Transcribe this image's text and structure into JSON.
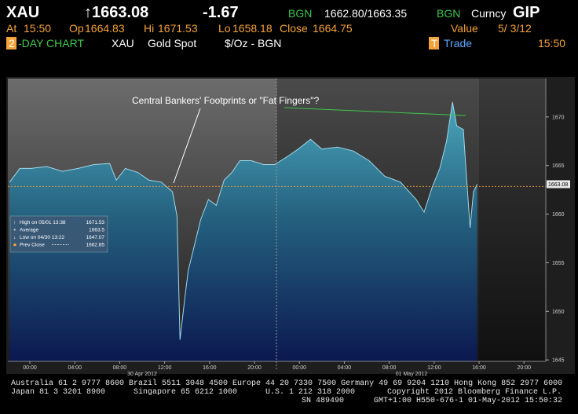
{
  "header": {
    "row1": {
      "ticker": "XAU",
      "last": "↑1663.08",
      "change": "-1.67",
      "source1": "BGN",
      "bid_ask": "1662.80/1663.35",
      "source2": "BGN",
      "market": "Curncy",
      "market_key": "GIP"
    },
    "row2": {
      "at_label": "At",
      "at": "15:50",
      "open_label": "Op",
      "open": "1664.83",
      "high_label": "Hi",
      "high": "1671.53",
      "low_label": "Lo",
      "low": "1658.18",
      "close_label": "Close",
      "close": "1664.75",
      "value_label": "Value",
      "value_date": "5/ 3/12"
    },
    "row3": {
      "page_number": "2",
      "page_title": "-DAY CHART",
      "ticker": "XAU",
      "name": "Gold Spot",
      "unit": "$/Oz - BGN",
      "trade_key": "T",
      "trade": "Trade",
      "time": "15:50"
    }
  },
  "chart_data": {
    "type": "area",
    "annotation": "Central Bankers' Footprints or \"Fat Fingers\"?",
    "date_labels": [
      "30 Apr 2012",
      "01 May 2012"
    ],
    "x": [
      -1.8,
      -0.9,
      0.1,
      1.5,
      2.9,
      4.3,
      5.7,
      7.1,
      7.7,
      8.5,
      9.6,
      10.6,
      11.7,
      12.7,
      13.1,
      13.37,
      13.8,
      14.1,
      14.7,
      15.2,
      15.9,
      16.6,
      17.3,
      18.0,
      18.7,
      19.7,
      20.8,
      21.8,
      22.9,
      23.9,
      25.0,
      26.0,
      27.4,
      28.8,
      30.2,
      31.6,
      33.0,
      34.4,
      35.1,
      35.8,
      36.5,
      37.1,
      37.63,
      38.0,
      38.6,
      38.9,
      39.2,
      39.5,
      39.83
    ],
    "series": [
      {
        "name": "XAU",
        "color": "#9fd8ea",
        "values": [
          1663.3,
          1664.7,
          1664.7,
          1664.9,
          1664.4,
          1664.7,
          1665.1,
          1665.2,
          1663.5,
          1664.7,
          1664.3,
          1663.5,
          1663.3,
          1662.3,
          1659.8,
          1647.07,
          1651.4,
          1654.2,
          1657.0,
          1659.4,
          1661.5,
          1660.9,
          1663.5,
          1664.3,
          1665.5,
          1665.5,
          1665.1,
          1665.1,
          1665.9,
          1666.7,
          1667.7,
          1666.7,
          1666.9,
          1666.5,
          1665.5,
          1663.9,
          1663.3,
          1661.5,
          1660.2,
          1662.7,
          1664.7,
          1667.5,
          1671.53,
          1669.1,
          1668.7,
          1663.5,
          1658.6,
          1662.3,
          1663.08
        ]
      }
    ],
    "last_price": 1663.08,
    "prev_close": 1662.85,
    "legend": [
      {
        "label": "High on 05/01 13:38",
        "value": 1671.53
      },
      {
        "label": "Average",
        "value": 1663.5
      },
      {
        "label": "Low on 04/30 13:22",
        "value": 1647.07
      },
      {
        "label": "Prev Close",
        "value": 1662.85
      }
    ],
    "xlim": [
      -1.96,
      45.94
    ],
    "xticks": [
      {
        "value": 0,
        "label": "00:00"
      },
      {
        "value": 4,
        "label": "04:00"
      },
      {
        "value": 8,
        "label": "08:00"
      },
      {
        "value": 12,
        "label": "12:00"
      },
      {
        "value": 16,
        "label": "16:00"
      },
      {
        "value": 20,
        "label": "20:00"
      },
      {
        "value": 24,
        "label": "00:00"
      },
      {
        "value": 28,
        "label": "04:00"
      },
      {
        "value": 32,
        "label": "08:00"
      },
      {
        "value": 36,
        "label": "12:00"
      },
      {
        "value": 40,
        "label": "16:00"
      },
      {
        "value": 44,
        "label": "20:00"
      }
    ],
    "ylim": [
      1644.85,
      1673.95
    ],
    "yticks": [
      1645,
      1650,
      1655,
      1660,
      1665,
      1670
    ],
    "grid": false
  },
  "footer": {
    "line1": "Australia 61 2 9777 8600 Brazil 5511 3048 4500 Europe 44 20 7330 7500 Germany 49 69 9204 1210 Hong Kong 852 2977 6000",
    "line2a": "Japan 81 3 3201 8900",
    "line2b": "Singapore 65 6212 1000",
    "line2c": "U.S. 1 212 318 2000",
    "line2d": "Copyright 2012 Bloomberg Finance L.P.",
    "line3a": "SN 489490",
    "line3b": "GMT+1:00 H550-676-1 01-May-2012 15:50:32"
  }
}
